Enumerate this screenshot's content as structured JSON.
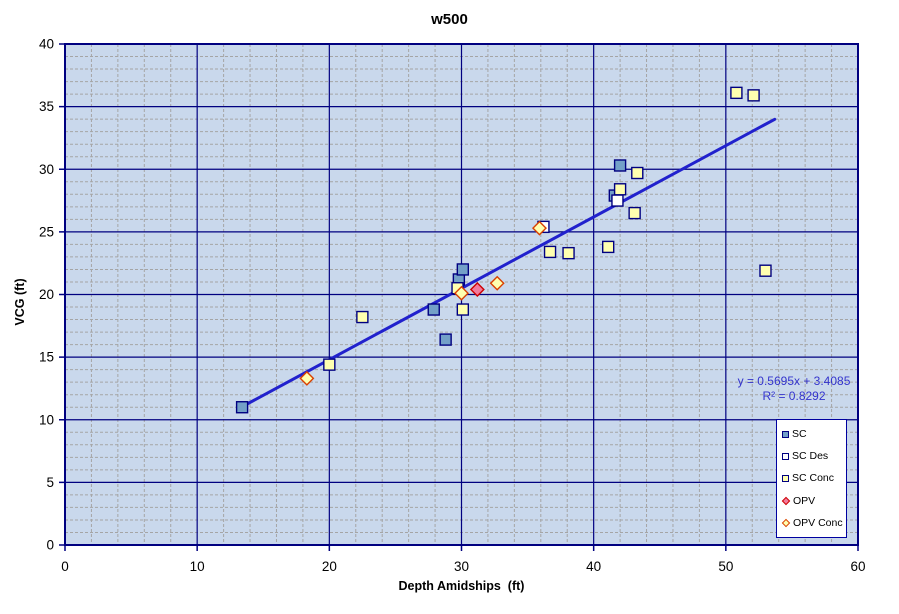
{
  "title": "w500",
  "colors": {
    "plot_background": "#c9d8ec",
    "axis": "#000080",
    "major_grid": "#000080",
    "minor_grid": "#a5a5a5",
    "trendline": "#2121cd",
    "equation_text": "#3333cc",
    "sc_fill": "#73a0c8",
    "pale_yellow_fill": "#ffffb0",
    "white_fill": "#ffffff",
    "opv_fill": "#f27a9c",
    "square_border": "#000080",
    "opv_border": "#cc0000",
    "opv_conc_border": "#d94000",
    "legend_border": "#0000a0"
  },
  "chart_data": {
    "type": "scatter",
    "title": "w500",
    "xlabel": "Depth Amidships  (ft)",
    "ylabel": "VCG (ft)",
    "xlim": [
      0,
      60
    ],
    "ylim": [
      0,
      40
    ],
    "x_ticks": [
      0,
      10,
      20,
      30,
      40,
      50,
      60
    ],
    "y_ticks": [
      0,
      5,
      10,
      15,
      20,
      25,
      30,
      35,
      40
    ],
    "x_minor_interval": 2,
    "y_minor_interval": 1,
    "grid": true,
    "legend_position": "inside-bottom-right",
    "series": [
      {
        "name": "SC",
        "marker": "square",
        "fill": "#73a0c8",
        "border": "#000080",
        "points": [
          [
            13.4,
            11.0
          ],
          [
            27.9,
            18.8
          ],
          [
            28.8,
            16.4
          ],
          [
            29.8,
            21.2
          ],
          [
            30.1,
            22.0
          ],
          [
            41.6,
            27.9
          ],
          [
            42.0,
            30.3
          ]
        ]
      },
      {
        "name": "SC Des",
        "marker": "square",
        "fill": "#ffffff",
        "border": "#000080",
        "points": [
          [
            36.2,
            25.4
          ],
          [
            41.8,
            27.5
          ]
        ]
      },
      {
        "name": "SC Conc",
        "marker": "square",
        "fill": "#ffffb0",
        "border": "#000080",
        "points": [
          [
            20.0,
            14.4
          ],
          [
            22.5,
            18.2
          ],
          [
            29.7,
            20.5
          ],
          [
            30.1,
            18.8
          ],
          [
            36.7,
            23.4
          ],
          [
            38.1,
            23.3
          ],
          [
            41.1,
            23.8
          ],
          [
            42.0,
            28.4
          ],
          [
            43.1,
            26.5
          ],
          [
            43.3,
            29.7
          ],
          [
            50.8,
            36.1
          ],
          [
            52.1,
            35.9
          ],
          [
            53.0,
            21.9
          ]
        ]
      },
      {
        "name": "OPV",
        "marker": "diamond",
        "fill": "#f27a9c",
        "border": "#cc0000",
        "points": [
          [
            31.2,
            20.4
          ]
        ]
      },
      {
        "name": "OPV Conc",
        "marker": "diamond",
        "fill": "#ffffb0",
        "border": "#d94000",
        "points": [
          [
            18.3,
            13.3
          ],
          [
            30.0,
            20.1
          ],
          [
            32.7,
            20.9
          ],
          [
            35.9,
            25.3
          ]
        ]
      }
    ],
    "trendline": {
      "slope": 0.5695,
      "intercept": 3.4085,
      "x_start": 13.4,
      "x_end": 53.7,
      "equation": "y = 0.5695x + 3.4085",
      "r_squared": "R² = 0.8292"
    }
  },
  "legend": {
    "items": [
      {
        "label": "SC"
      },
      {
        "label": "SC Des"
      },
      {
        "label": "SC Conc"
      },
      {
        "label": "OPV"
      },
      {
        "label": "OPV Conc"
      }
    ]
  }
}
